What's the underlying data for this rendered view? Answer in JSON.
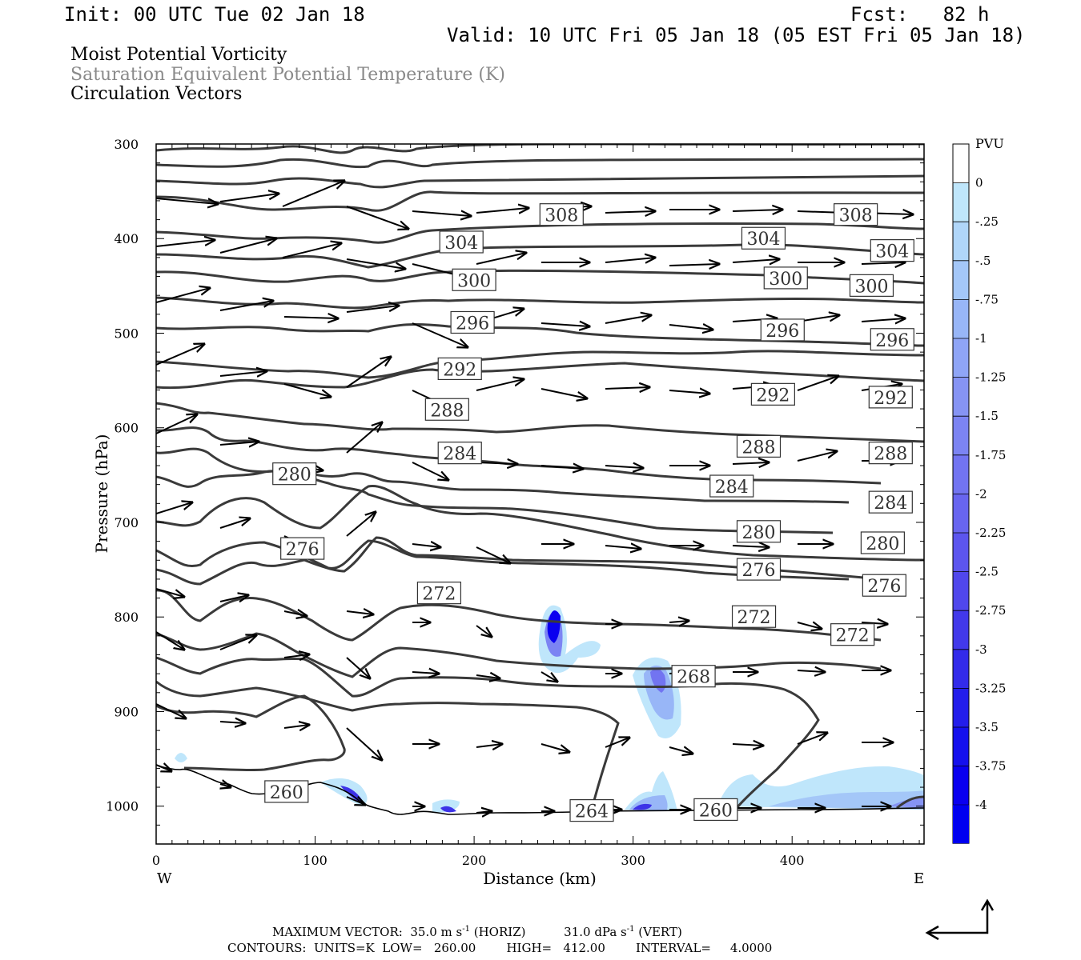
{
  "header": {
    "init": "Init: 00 UTC Tue 02 Jan 18",
    "fcst": "Fcst:   82 h",
    "valid": "Valid: 10 UTC Fri 05 Jan 18 (05 EST Fri 05 Jan 18)"
  },
  "fields": [
    "Moist Potential Vorticity",
    "Saturation Equivalent Potential Temperature (K)",
    "Circulation Vectors"
  ],
  "chart_data": {
    "type": "contour",
    "xlabel": "Distance (km)",
    "ylabel": "Pressure (hPa)",
    "xlim": [
      0,
      483
    ],
    "ylim": [
      1040,
      300
    ],
    "y_scale": "pressure",
    "x_ticks": [
      0,
      100,
      200,
      300,
      400
    ],
    "y_ticks": [
      300,
      400,
      500,
      600,
      700,
      800,
      900,
      1000
    ],
    "x_end_labels": {
      "left": "W",
      "right": "E"
    },
    "colorbar": {
      "units": "PVU",
      "labels": [
        "0",
        "-.25",
        "-.5",
        "-.75",
        "-1",
        "-1.25",
        "-1.5",
        "-1.75",
        "-2",
        "-2.25",
        "-2.5",
        "-2.75",
        "-3",
        "-3.25",
        "-3.5",
        "-3.75",
        "-4"
      ],
      "colors": [
        "#ffffff",
        "#bfe6fb",
        "#b0d6f9",
        "#a4c7f8",
        "#98b6f7",
        "#8fa5f6",
        "#8694f4",
        "#7c84f3",
        "#7274f1",
        "#6865f0",
        "#5c55ee",
        "#5047ec",
        "#4239ea",
        "#332bea",
        "#231deb",
        "#1510ed",
        "#0a00f0"
      ]
    },
    "contour_labels": [
      {
        "text": "308",
        "x": 255,
        "p": 375
      },
      {
        "text": "308",
        "x": 440,
        "p": 375
      },
      {
        "text": "304",
        "x": 192,
        "p": 404
      },
      {
        "text": "304",
        "x": 382,
        "p": 400
      },
      {
        "text": "304",
        "x": 463,
        "p": 413
      },
      {
        "text": "300",
        "x": 200,
        "p": 444
      },
      {
        "text": "300",
        "x": 396,
        "p": 442
      },
      {
        "text": "300",
        "x": 450,
        "p": 450
      },
      {
        "text": "296",
        "x": 199,
        "p": 489
      },
      {
        "text": "296",
        "x": 394,
        "p": 497
      },
      {
        "text": "296",
        "x": 463,
        "p": 507
      },
      {
        "text": "292",
        "x": 191,
        "p": 538
      },
      {
        "text": "292",
        "x": 388,
        "p": 565
      },
      {
        "text": "292",
        "x": 462,
        "p": 568
      },
      {
        "text": "288",
        "x": 183,
        "p": 581
      },
      {
        "text": "288",
        "x": 379,
        "p": 620
      },
      {
        "text": "288",
        "x": 462,
        "p": 627
      },
      {
        "text": "284",
        "x": 191,
        "p": 627
      },
      {
        "text": "284",
        "x": 362,
        "p": 662
      },
      {
        "text": "284",
        "x": 462,
        "p": 679
      },
      {
        "text": "280",
        "x": 87,
        "p": 649
      },
      {
        "text": "280",
        "x": 379,
        "p": 710
      },
      {
        "text": "280",
        "x": 457,
        "p": 722
      },
      {
        "text": "276",
        "x": 92,
        "p": 728
      },
      {
        "text": "276",
        "x": 379,
        "p": 750
      },
      {
        "text": "276",
        "x": 458,
        "p": 767
      },
      {
        "text": "272",
        "x": 178,
        "p": 775
      },
      {
        "text": "272",
        "x": 376,
        "p": 800
      },
      {
        "text": "272",
        "x": 438,
        "p": 819
      },
      {
        "text": "268",
        "x": 338,
        "p": 863
      },
      {
        "text": "264",
        "x": 274,
        "p": 1005
      },
      {
        "text": "260",
        "x": 82,
        "p": 985
      },
      {
        "text": "260",
        "x": 352,
        "p": 1004
      }
    ],
    "max_vector": {
      "horiz": "35.0 m s-1",
      "vert": "31.0 dPa s-1"
    },
    "contours": {
      "units": "K",
      "low": "260.00",
      "high": "412.00",
      "interval": "4.0000"
    }
  },
  "footer": {
    "line1": "MAXIMUM VECTOR:  35.0 m s",
    "line1_exp": "-1",
    "line1_b": " (HORIZ)          31.0 dPa s",
    "line1_exp2": "-1",
    "line1_c": " (VERT)",
    "line2": "CONTOURS:  UNITS=K  LOW=   260.00        HIGH=   412.00        INTERVAL=     4.0000"
  }
}
